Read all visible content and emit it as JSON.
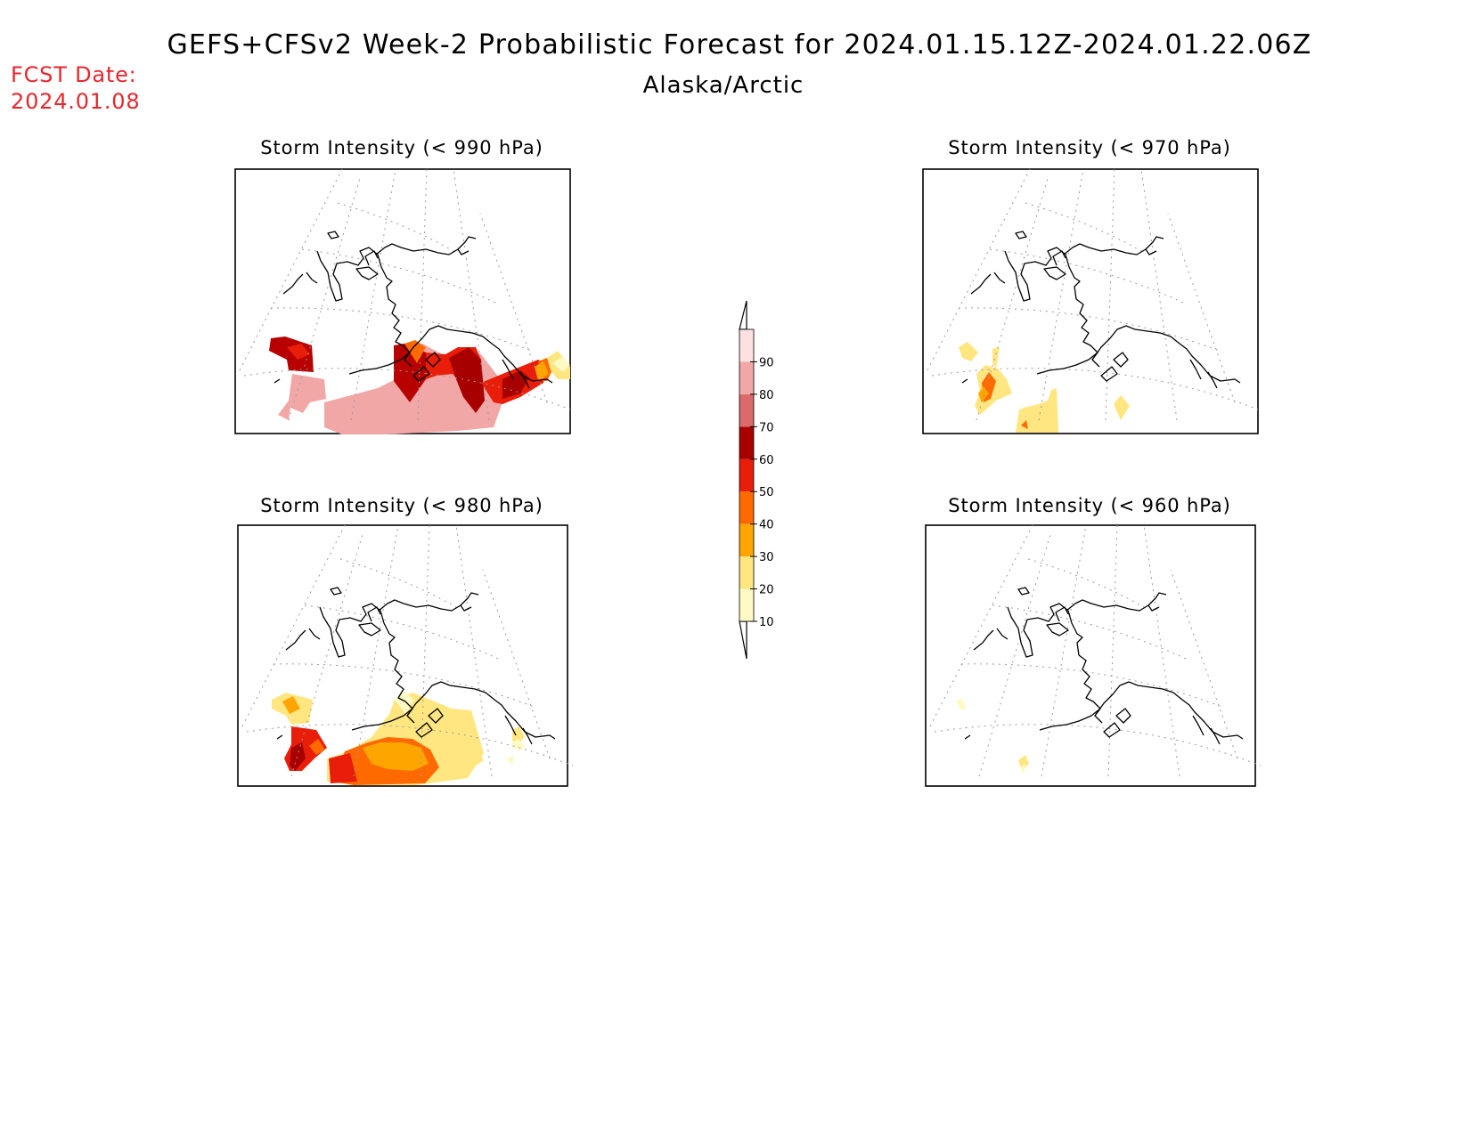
{
  "header": {
    "title": "GEFS+CFSv2 Week-2 Probabilistic Forecast for 2024.01.15.12Z-2024.01.22.06Z",
    "subtitle": "Alaska/Arctic",
    "fcst_date_label": "FCST Date:",
    "fcst_date_value": "2024.01.08",
    "fcst_color": "#e8262c"
  },
  "panels": [
    {
      "id": "p990",
      "title": "Storm Intensity (< 990 hPa)"
    },
    {
      "id": "p970",
      "title": "Storm Intensity (< 970 hPa)"
    },
    {
      "id": "p980",
      "title": "Storm Intensity (< 980 hPa)"
    },
    {
      "id": "p960",
      "title": "Storm Intensity (< 960 hPa)"
    }
  ],
  "colorbar": {
    "unit": "%",
    "levels": [
      10,
      20,
      30,
      40,
      50,
      60,
      70,
      80,
      90
    ],
    "labels": [
      "10",
      "20",
      "30",
      "40",
      "50",
      "60",
      "70",
      "80",
      "90"
    ],
    "colors": [
      "#fffac4",
      "#ffe680",
      "#ffa500",
      "#ff6a00",
      "#e81e0a",
      "#a80000",
      "#dd6a6a",
      "#f2a7a7",
      "#fde0e0"
    ]
  }
}
